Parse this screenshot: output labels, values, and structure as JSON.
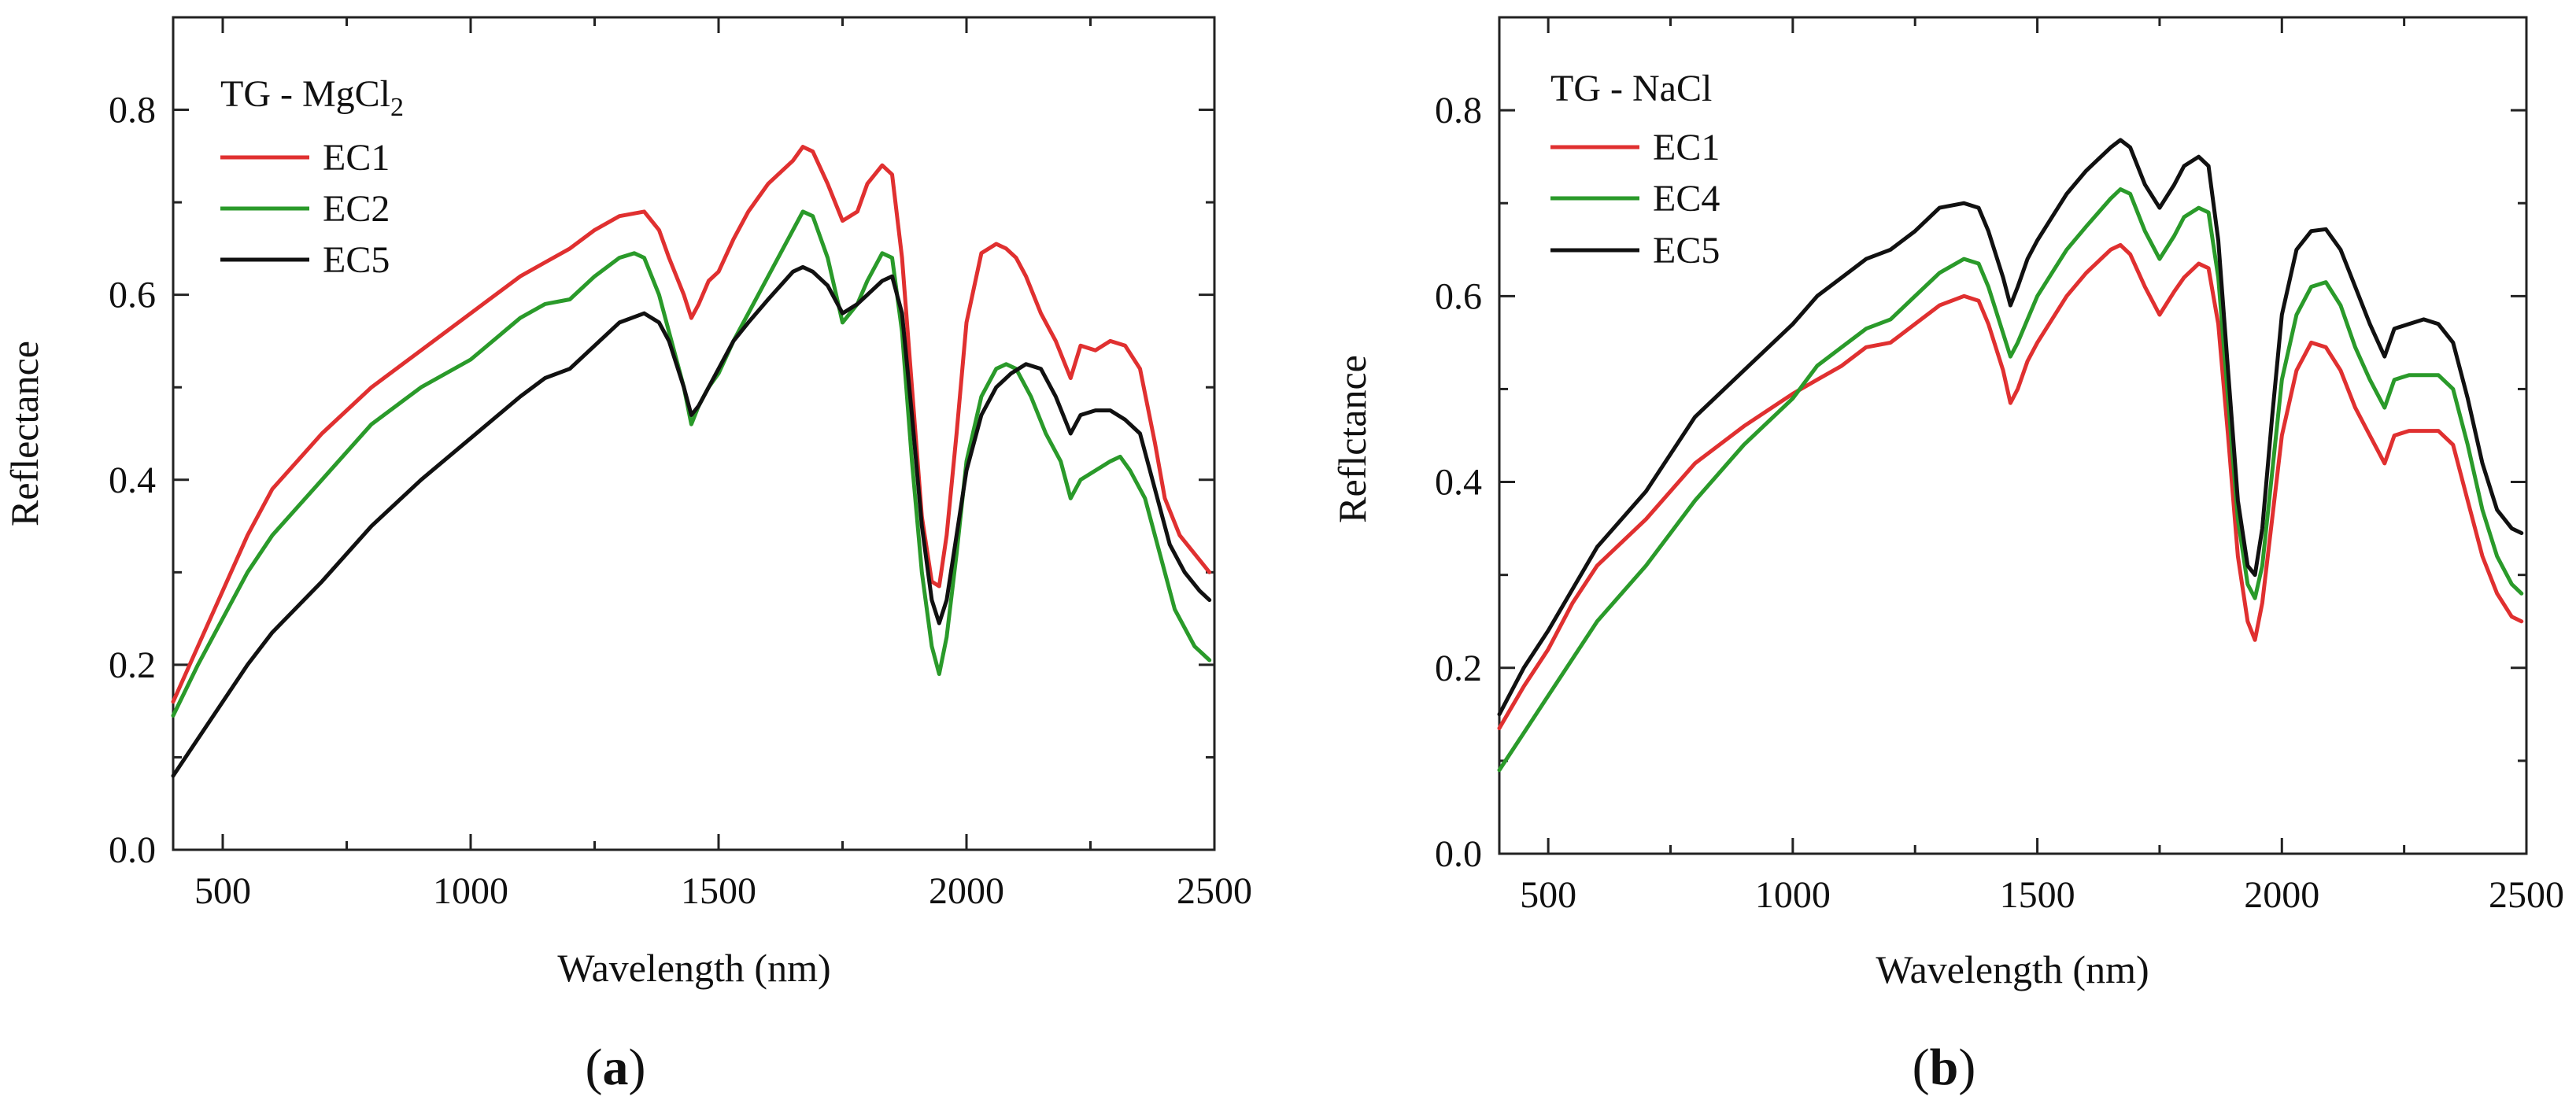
{
  "chart_data": [
    {
      "type": "line",
      "panel_label": "a",
      "title": "",
      "legend_title": "TG - MgCl",
      "legend_title_subscript": "2",
      "xlabel": "Wavelength (nm)",
      "ylabel": "Reflectance",
      "xlim": [
        400,
        2500
      ],
      "ylim": [
        0.0,
        0.9
      ],
      "xticks": [
        500,
        1000,
        1500,
        2000,
        2500
      ],
      "yticks": [
        0.0,
        0.2,
        0.4,
        0.6,
        0.8
      ],
      "xtick_labels": [
        "500",
        "1000",
        "1500",
        "2000",
        "2500"
      ],
      "ytick_labels": [
        "0.0",
        "0.2",
        "0.4",
        "0.6",
        "0.8"
      ],
      "legend_position": "top-left",
      "series": [
        {
          "name": "EC1",
          "color": "#e03030",
          "x": [
            400,
            450,
            500,
            550,
            600,
            700,
            800,
            900,
            1000,
            1100,
            1150,
            1200,
            1250,
            1300,
            1350,
            1380,
            1400,
            1430,
            1445,
            1460,
            1480,
            1500,
            1530,
            1560,
            1600,
            1650,
            1670,
            1690,
            1720,
            1750,
            1780,
            1800,
            1830,
            1850,
            1870,
            1890,
            1910,
            1930,
            1945,
            1960,
            1980,
            2000,
            2030,
            2060,
            2080,
            2100,
            2120,
            2150,
            2180,
            2210,
            2230,
            2260,
            2290,
            2320,
            2350,
            2380,
            2400,
            2430,
            2460,
            2490
          ],
          "y": [
            0.16,
            0.22,
            0.28,
            0.34,
            0.39,
            0.45,
            0.5,
            0.54,
            0.58,
            0.62,
            0.635,
            0.65,
            0.67,
            0.685,
            0.69,
            0.67,
            0.64,
            0.6,
            0.575,
            0.59,
            0.615,
            0.625,
            0.66,
            0.69,
            0.72,
            0.745,
            0.76,
            0.755,
            0.72,
            0.68,
            0.69,
            0.72,
            0.74,
            0.73,
            0.64,
            0.5,
            0.36,
            0.29,
            0.285,
            0.34,
            0.45,
            0.57,
            0.645,
            0.655,
            0.65,
            0.64,
            0.62,
            0.58,
            0.55,
            0.51,
            0.545,
            0.54,
            0.55,
            0.545,
            0.52,
            0.44,
            0.38,
            0.34,
            0.32,
            0.3
          ]
        },
        {
          "name": "EC2",
          "color": "#2a9a2a",
          "x": [
            400,
            450,
            500,
            550,
            600,
            700,
            800,
            900,
            1000,
            1100,
            1150,
            1200,
            1250,
            1300,
            1330,
            1350,
            1380,
            1400,
            1430,
            1445,
            1460,
            1480,
            1500,
            1530,
            1560,
            1600,
            1650,
            1670,
            1690,
            1720,
            1750,
            1780,
            1800,
            1830,
            1850,
            1870,
            1890,
            1910,
            1930,
            1945,
            1960,
            1980,
            2000,
            2030,
            2060,
            2080,
            2100,
            2130,
            2160,
            2190,
            2210,
            2230,
            2260,
            2290,
            2310,
            2330,
            2360,
            2390,
            2420,
            2460,
            2490
          ],
          "y": [
            0.145,
            0.2,
            0.25,
            0.3,
            0.34,
            0.4,
            0.46,
            0.5,
            0.53,
            0.575,
            0.59,
            0.595,
            0.62,
            0.64,
            0.645,
            0.64,
            0.6,
            0.56,
            0.5,
            0.46,
            0.48,
            0.5,
            0.515,
            0.55,
            0.58,
            0.62,
            0.67,
            0.69,
            0.685,
            0.64,
            0.57,
            0.59,
            0.615,
            0.645,
            0.64,
            0.56,
            0.42,
            0.3,
            0.22,
            0.19,
            0.23,
            0.32,
            0.42,
            0.49,
            0.52,
            0.525,
            0.52,
            0.49,
            0.45,
            0.42,
            0.38,
            0.4,
            0.41,
            0.42,
            0.425,
            0.41,
            0.38,
            0.32,
            0.26,
            0.22,
            0.205
          ]
        },
        {
          "name": "EC5",
          "color": "#111111",
          "x": [
            400,
            450,
            500,
            550,
            600,
            700,
            800,
            900,
            1000,
            1100,
            1150,
            1200,
            1250,
            1300,
            1350,
            1380,
            1400,
            1430,
            1445,
            1460,
            1480,
            1500,
            1530,
            1560,
            1600,
            1650,
            1670,
            1690,
            1720,
            1750,
            1780,
            1800,
            1830,
            1850,
            1870,
            1890,
            1910,
            1930,
            1945,
            1960,
            1980,
            2000,
            2030,
            2060,
            2090,
            2120,
            2150,
            2180,
            2210,
            2230,
            2260,
            2290,
            2320,
            2350,
            2380,
            2410,
            2440,
            2470,
            2490
          ],
          "y": [
            0.08,
            0.12,
            0.16,
            0.2,
            0.235,
            0.29,
            0.35,
            0.4,
            0.445,
            0.49,
            0.51,
            0.52,
            0.545,
            0.57,
            0.58,
            0.57,
            0.55,
            0.5,
            0.47,
            0.48,
            0.5,
            0.52,
            0.55,
            0.57,
            0.595,
            0.625,
            0.63,
            0.625,
            0.61,
            0.58,
            0.59,
            0.6,
            0.615,
            0.62,
            0.58,
            0.47,
            0.35,
            0.27,
            0.245,
            0.27,
            0.34,
            0.41,
            0.47,
            0.5,
            0.515,
            0.525,
            0.52,
            0.49,
            0.45,
            0.47,
            0.475,
            0.475,
            0.465,
            0.45,
            0.39,
            0.33,
            0.3,
            0.28,
            0.27
          ]
        }
      ]
    },
    {
      "type": "line",
      "panel_label": "b",
      "title": "",
      "legend_title": "TG - NaCl",
      "legend_title_subscript": "",
      "xlabel": "Wavelength (nm)",
      "ylabel": "Reflctance",
      "xlim": [
        400,
        2500
      ],
      "ylim": [
        0.0,
        0.9
      ],
      "xticks": [
        500,
        1000,
        1500,
        2000,
        2500
      ],
      "yticks": [
        0.0,
        0.2,
        0.4,
        0.6,
        0.8
      ],
      "xtick_labels": [
        "500",
        "1000",
        "1500",
        "2000",
        "2500"
      ],
      "ytick_labels": [
        "0.0",
        "0.2",
        "0.4",
        "0.6",
        "0.8"
      ],
      "legend_position": "top-left",
      "series": [
        {
          "name": "EC1",
          "color": "#e03030",
          "x": [
            400,
            450,
            500,
            550,
            600,
            700,
            800,
            900,
            1000,
            1050,
            1100,
            1150,
            1200,
            1250,
            1300,
            1350,
            1380,
            1400,
            1430,
            1445,
            1460,
            1480,
            1500,
            1530,
            1560,
            1600,
            1650,
            1670,
            1690,
            1720,
            1750,
            1780,
            1800,
            1830,
            1850,
            1870,
            1890,
            1910,
            1930,
            1945,
            1960,
            1980,
            2000,
            2030,
            2060,
            2090,
            2120,
            2150,
            2180,
            2210,
            2230,
            2260,
            2290,
            2320,
            2350,
            2380,
            2410,
            2440,
            2470,
            2490
          ],
          "y": [
            0.135,
            0.18,
            0.22,
            0.27,
            0.31,
            0.36,
            0.42,
            0.46,
            0.495,
            0.51,
            0.525,
            0.545,
            0.55,
            0.57,
            0.59,
            0.6,
            0.595,
            0.57,
            0.52,
            0.485,
            0.5,
            0.53,
            0.55,
            0.575,
            0.6,
            0.625,
            0.65,
            0.655,
            0.645,
            0.61,
            0.58,
            0.605,
            0.62,
            0.635,
            0.63,
            0.57,
            0.45,
            0.32,
            0.25,
            0.23,
            0.27,
            0.36,
            0.45,
            0.52,
            0.55,
            0.545,
            0.52,
            0.48,
            0.45,
            0.42,
            0.45,
            0.455,
            0.455,
            0.455,
            0.44,
            0.38,
            0.32,
            0.28,
            0.255,
            0.25
          ]
        },
        {
          "name": "EC4",
          "color": "#2a9a2a",
          "x": [
            400,
            450,
            500,
            550,
            600,
            700,
            800,
            900,
            1000,
            1050,
            1100,
            1150,
            1200,
            1250,
            1300,
            1350,
            1380,
            1400,
            1430,
            1445,
            1460,
            1480,
            1500,
            1530,
            1560,
            1600,
            1650,
            1670,
            1690,
            1720,
            1750,
            1780,
            1800,
            1830,
            1850,
            1870,
            1890,
            1910,
            1930,
            1945,
            1960,
            1980,
            2000,
            2030,
            2060,
            2090,
            2120,
            2150,
            2180,
            2210,
            2230,
            2260,
            2290,
            2320,
            2350,
            2380,
            2410,
            2440,
            2470,
            2490
          ],
          "y": [
            0.09,
            0.13,
            0.17,
            0.21,
            0.25,
            0.31,
            0.38,
            0.44,
            0.49,
            0.525,
            0.545,
            0.565,
            0.575,
            0.6,
            0.625,
            0.64,
            0.635,
            0.61,
            0.56,
            0.535,
            0.55,
            0.575,
            0.6,
            0.625,
            0.65,
            0.675,
            0.705,
            0.715,
            0.71,
            0.67,
            0.64,
            0.665,
            0.685,
            0.695,
            0.69,
            0.62,
            0.49,
            0.36,
            0.29,
            0.275,
            0.31,
            0.41,
            0.51,
            0.58,
            0.61,
            0.615,
            0.59,
            0.545,
            0.51,
            0.48,
            0.51,
            0.515,
            0.515,
            0.515,
            0.5,
            0.44,
            0.37,
            0.32,
            0.29,
            0.28
          ]
        },
        {
          "name": "EC5",
          "color": "#111111",
          "x": [
            400,
            450,
            500,
            550,
            600,
            700,
            800,
            900,
            1000,
            1050,
            1100,
            1150,
            1200,
            1250,
            1300,
            1350,
            1380,
            1400,
            1430,
            1445,
            1460,
            1480,
            1500,
            1530,
            1560,
            1600,
            1650,
            1670,
            1690,
            1720,
            1750,
            1780,
            1800,
            1830,
            1850,
            1870,
            1890,
            1910,
            1930,
            1945,
            1960,
            1980,
            2000,
            2030,
            2060,
            2090,
            2120,
            2150,
            2180,
            2210,
            2230,
            2260,
            2290,
            2320,
            2350,
            2380,
            2410,
            2440,
            2470,
            2490
          ],
          "y": [
            0.15,
            0.2,
            0.24,
            0.285,
            0.33,
            0.39,
            0.47,
            0.52,
            0.57,
            0.6,
            0.62,
            0.64,
            0.65,
            0.67,
            0.695,
            0.7,
            0.695,
            0.67,
            0.62,
            0.59,
            0.61,
            0.64,
            0.66,
            0.685,
            0.71,
            0.735,
            0.76,
            0.768,
            0.76,
            0.72,
            0.695,
            0.72,
            0.74,
            0.75,
            0.74,
            0.66,
            0.52,
            0.38,
            0.31,
            0.3,
            0.35,
            0.47,
            0.58,
            0.65,
            0.67,
            0.672,
            0.65,
            0.61,
            0.57,
            0.535,
            0.565,
            0.57,
            0.575,
            0.57,
            0.55,
            0.49,
            0.42,
            0.37,
            0.35,
            0.345
          ]
        }
      ]
    }
  ]
}
